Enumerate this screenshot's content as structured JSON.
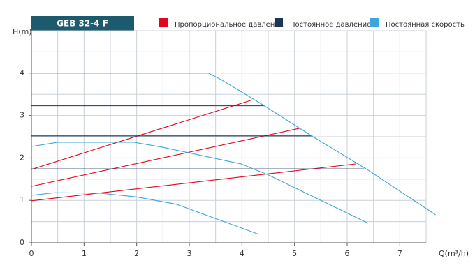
{
  "chart_data": {
    "type": "line",
    "title": "GEB 32-4 F",
    "x_label": "Q(m³/h)",
    "y_label": "H(m)",
    "xlim": [
      0,
      7.5
    ],
    "ylim": [
      0,
      5
    ],
    "xticks": [
      0,
      1,
      2,
      3,
      4,
      5,
      6,
      7
    ],
    "yticks": [
      0,
      1,
      2,
      3,
      4
    ],
    "x_grid": [
      0.5,
      1,
      1.5,
      2,
      2.5,
      3,
      3.5,
      4,
      4.5,
      5,
      5.5,
      6,
      6.5,
      7,
      7.5
    ],
    "y_grid": [
      0.5,
      1,
      1.5,
      2,
      2.5,
      3,
      3.5,
      4,
      4.5,
      5
    ],
    "grid": true,
    "series": [
      {
        "name": "Пропорциональное давление",
        "color": "#e3051b",
        "curves": [
          {
            "x": [
              0,
              4.2
            ],
            "values": [
              1.73,
              3.37
            ]
          },
          {
            "x": [
              0,
              5.1
            ],
            "values": [
              1.33,
              2.7
            ]
          },
          {
            "x": [
              0,
              6.17
            ],
            "values": [
              0.99,
              1.86
            ]
          }
        ]
      },
      {
        "name": "Постоянное давление",
        "color": "#1d3557",
        "curves": [
          {
            "x": [
              0,
              4.42
            ],
            "values": [
              3.23,
              3.23
            ]
          },
          {
            "x": [
              0,
              5.34
            ],
            "values": [
              2.52,
              2.52
            ]
          },
          {
            "x": [
              0,
              6.32
            ],
            "values": [
              1.74,
              1.74
            ]
          }
        ]
      },
      {
        "name": "Постоянная скорость",
        "color": "#3aa6dd",
        "curves": [
          {
            "x": [
              0,
              3.36,
              3.6,
              4.4,
              5.35,
              6.35,
              7.68
            ],
            "values": [
              4,
              4,
              3.85,
              3.25,
              2.5,
              1.75,
              0.66
            ]
          },
          {
            "x": [
              0,
              0.5,
              1.95,
              2.5,
              3.98,
              4.5,
              6.4
            ],
            "values": [
              2.27,
              2.37,
              2.37,
              2.25,
              1.86,
              1.6,
              0.46
            ]
          },
          {
            "x": [
              0,
              0.45,
              1.3,
              2,
              2.75,
              4.32
            ],
            "values": [
              1.12,
              1.18,
              1.17,
              1.08,
              0.91,
              0.2
            ]
          }
        ]
      }
    ]
  }
}
